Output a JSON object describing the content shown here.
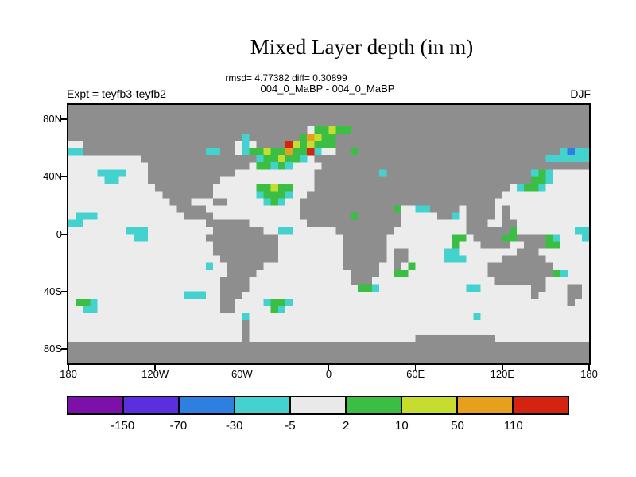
{
  "chart_data": {
    "type": "heatmap",
    "title": "Mixed Layer depth (in m)",
    "stats_line": "rmsd= 4.77382 diff= 0.30899",
    "comparison_line": "004_0_MaBP - 004_0_MaBP",
    "experiment_label": "Expt = teyfb3-teyfb2",
    "season": "DJF",
    "units": "m",
    "x_axis": {
      "ticks": [
        {
          "label": "180",
          "lon": -180
        },
        {
          "label": "120W",
          "lon": -120
        },
        {
          "label": "60W",
          "lon": -60
        },
        {
          "label": "0",
          "lon": 0
        },
        {
          "label": "60E",
          "lon": 60
        },
        {
          "label": "120E",
          "lon": 120
        },
        {
          "label": "180",
          "lon": 180
        }
      ],
      "range_deg": [
        -180,
        180
      ]
    },
    "y_axis": {
      "ticks": [
        {
          "label": "80N",
          "lat": 80
        },
        {
          "label": "40N",
          "lat": 40
        },
        {
          "label": "0",
          "lat": 0
        },
        {
          "label": "40S",
          "lat": -40
        },
        {
          "label": "80S",
          "lat": -80
        }
      ],
      "range_deg": [
        90,
        -90
      ]
    },
    "colorbar": {
      "boundary_labels": [
        "-150",
        "-70",
        "-30",
        "-5",
        "2",
        "10",
        "50",
        "110"
      ],
      "segment_colors": [
        "#7c10a8",
        "#5b2ee0",
        "#2f7fe0",
        "#44d2cf",
        "#e9e9e9",
        "#3abf44",
        "#c6dc2e",
        "#e6a01e",
        "#d42310"
      ],
      "segment_ranges": [
        "< -150",
        "-150 to -70",
        "-70 to -30",
        "-30 to -5",
        "-5 to 2",
        "2 to 10",
        "10 to 50",
        "50 to 110",
        "> 110"
      ]
    },
    "cell_colors": {
      "#": "#8e8e8e",
      ".": "#ececec",
      "p": "#7c10a8",
      "v": "#5b2ee0",
      "b": "#2f7fe0",
      "c": "#44d2cf",
      "g": "#3abf44",
      "y": "#c6dc2e",
      "o": "#e6a01e",
      "r": "#d42310"
    },
    "grid": {
      "cols": 72,
      "cell_deg": 5,
      "legend": {
        "#": "land/ice mask",
        ".": "ocean, diff -5..2 m",
        "p": "< -150 m",
        "v": "-150..-70 m",
        "b": "-70..-30 m",
        "c": "-30..-5 m",
        "g": "2..10 m",
        "y": "10..50 m",
        "o": "50..110 m",
        "r": "> 110 m"
      },
      "rows_rle": [
        "72#",
        "72#",
        "72#",
        "33#,1.,2g,1y,2g,33#",
        "24#,1c,7#,1g,1o,1y,2g,35#",
        "2.,21#,1.,1c,1.,4#,1r,1y,1g,1y,3g,35#",
        "2c,17#,2c,2#,1.,1c,2g,1y,2g,1o,2g,1r,1c,2.,2#,1g,28#,1c,1b,2c",
        "10.,16#,1c,2g,1y,2g,1c,1.,32#,6c",
        "11.,14#,1.,2g,1c,1g,1c,4.,37#",
        "4.,4c,3.,12#,11.,9#,1c,20#,1c,1g,1c,5.",
        "5.,2c,4.,10#,13.,30#,2g,1c,5.",
        "12.,8#,6.,2g,1y,2g,3.,27#,1.,1c,2g,1c,6.",
        "13.,7#,6.,1c,3g,1c,2.,27#,12.",
        "14.,3#,3.,2#,5.,1c,1g,1c,2.,27#,13.",
        "15.,4#,13.,13#,1g,2.,2c,4#,1.,4#,1.,1#,11.",
        "1.,3c,12.,4#,12.,7#,1g,6#,5.,2#,1c,1.,4#,1.,1#,11.",
        "2c,17.,6#,8.,13#,9.,3#,2.,2#,10.",
        "8.,3c,9.,7#,2.,2c,6.,8#,10.,6#,1g,8.,2c",
        "9.,2c,8.,10#,9.,6#,9.,2g,1.,4#,2g,4#,1g,1c,3.,1c",
        "20.,9#,9.,6#,9.,1g,3.,4#,2.,3#,2g,4.",
        "20.,9#,9.,6#,1.,2#,5.,2c,8.,3#,7.",
        "21.,8#,9.,6#,1.,2#,5.,3c,5.,6#,6.",
        "19.,1c,2.,5#,11.,5#,2.,1#,1.,1g,10.,9#,5.",
        "22.,4#,13.,4#,2.,2g,11.,9#,1g,1c,3.",
        "21.,4#,14.,3#,17.,7#,6.",
        "21.,4#,15.,2g,1c,12.,2c,7.,2#,3.,2#,1.",
        "16.,3c,2.,3#,40.,1#,4.,2#,1.",
        "1.,2g,1c,17.,2#,4.,1c,2g,1c,38.,1#,2.",
        "2.,2c,17.,2#,5.,1g,1c,42.",
        "24.,1c,31.,1c,15.",
        "24.,1#,47.",
        "24.,1#,47.",
        "24.,1#,23.,11#,13.",
        "72#",
        "72#",
        "72#"
      ]
    }
  }
}
